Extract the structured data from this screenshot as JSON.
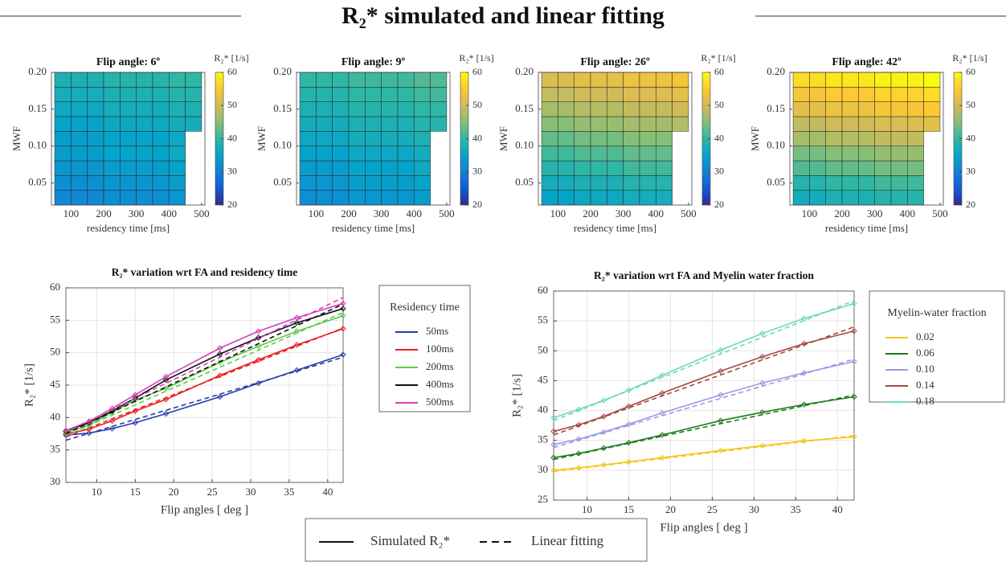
{
  "title": "R₂* simulated and linear fitting",
  "bottom_legend": {
    "labels": [
      "Simulated R₂*",
      "Linear fitting"
    ],
    "line_styles": [
      "solid",
      "dashed"
    ]
  },
  "chart_data": [
    {
      "type": "heatmap",
      "title": "Flip angle: 6º",
      "xlabel": "residency time [ms]",
      "ylabel": "MWF",
      "x": [
        75,
        125,
        175,
        225,
        275,
        325,
        375,
        425,
        475
      ],
      "y": [
        0.03,
        0.05,
        0.07,
        0.09,
        0.11,
        0.13,
        0.15,
        0.17,
        0.19
      ],
      "values": [
        [
          31,
          31,
          31,
          32,
          32,
          32,
          32,
          33,
          null
        ],
        [
          32,
          32,
          32,
          33,
          33,
          33,
          33,
          34,
          null
        ],
        [
          33,
          33,
          33,
          34,
          34,
          34,
          34,
          35,
          null
        ],
        [
          34,
          34,
          34,
          35,
          35,
          35,
          35,
          36,
          null
        ],
        [
          34,
          34,
          34,
          35,
          35,
          35,
          35,
          36,
          null
        ],
        [
          35,
          35,
          35,
          36,
          36,
          36,
          36,
          37,
          37
        ],
        [
          36,
          36,
          36,
          37,
          37,
          37,
          37,
          38,
          38
        ],
        [
          37,
          37,
          37,
          38,
          38,
          38,
          38,
          39,
          39
        ],
        [
          38,
          38,
          38,
          39,
          39,
          39,
          39,
          40,
          40
        ]
      ],
      "xlim": [
        40,
        510
      ],
      "ylim": [
        0.02,
        0.2
      ],
      "xticks": [
        100,
        200,
        300,
        400,
        500
      ],
      "yticks": [
        0.05,
        {
          "value": 0.1,
          "label": "0.10"
        },
        0.15,
        {
          "value": 0.2,
          "label": "0.20"
        }
      ],
      "colorbar": {
        "label": "R₂* [1/s]",
        "lim": [
          20,
          60
        ],
        "ticks": [
          20,
          30,
          40,
          50,
          60
        ]
      },
      "colormap": [
        "#352a87",
        "#0f5cdd",
        "#1481d6",
        "#06a4ca",
        "#2eb7a4",
        "#87bf77",
        "#d1bb59",
        "#fec832",
        "#f9fb0e"
      ]
    },
    {
      "type": "heatmap",
      "title": "Flip angle: 9º",
      "xlabel": "residency time [ms]",
      "ylabel": "MWF",
      "x": [
        75,
        125,
        175,
        225,
        275,
        325,
        375,
        425,
        475
      ],
      "y": [
        0.03,
        0.05,
        0.07,
        0.09,
        0.11,
        0.13,
        0.15,
        0.17,
        0.19
      ],
      "values": [
        [
          32,
          32,
          32,
          33,
          33,
          33,
          33,
          34,
          null
        ],
        [
          33,
          33,
          33,
          34,
          34,
          34,
          34,
          35,
          null
        ],
        [
          34,
          34,
          34,
          35,
          35,
          35,
          35,
          36,
          null
        ],
        [
          35,
          35,
          35,
          36,
          36,
          36,
          36,
          37,
          null
        ],
        [
          36,
          36,
          36,
          37,
          37,
          37,
          37,
          38,
          null
        ],
        [
          37,
          37,
          37,
          38,
          38,
          38,
          38,
          39,
          39
        ],
        [
          38,
          38,
          38,
          39,
          39,
          39,
          39,
          40,
          40
        ],
        [
          39,
          39,
          39,
          40,
          40,
          40,
          40,
          41,
          41
        ],
        [
          40,
          40,
          40,
          41,
          41,
          41,
          41,
          42,
          42
        ]
      ],
      "xlim": [
        40,
        510
      ],
      "ylim": [
        0.02,
        0.2
      ],
      "xticks": [
        100,
        200,
        300,
        400,
        500
      ],
      "yticks": [
        0.05,
        {
          "value": 0.1,
          "label": "0.10"
        },
        0.15,
        {
          "value": 0.2,
          "label": "0.20"
        }
      ],
      "colorbar": {
        "label": "R₂* [1/s]",
        "lim": [
          20,
          60
        ],
        "ticks": [
          20,
          30,
          40,
          50,
          60
        ]
      },
      "colormap": [
        "#352a87",
        "#0f5cdd",
        "#1481d6",
        "#06a4ca",
        "#2eb7a4",
        "#87bf77",
        "#d1bb59",
        "#fec832",
        "#f9fb0e"
      ]
    },
    {
      "type": "heatmap",
      "title": "Flip angle: 26º",
      "xlabel": "residency time [ms]",
      "ylabel": "MWF",
      "x": [
        75,
        125,
        175,
        225,
        275,
        325,
        375,
        425,
        475
      ],
      "y": [
        0.03,
        0.05,
        0.07,
        0.09,
        0.11,
        0.13,
        0.15,
        0.17,
        0.19
      ],
      "values": [
        [
          35,
          35,
          36,
          36,
          36,
          37,
          37,
          37,
          null
        ],
        [
          37,
          37,
          38,
          38,
          38,
          39,
          39,
          39,
          null
        ],
        [
          39,
          39,
          40,
          40,
          40,
          41,
          41,
          41,
          null
        ],
        [
          41,
          41,
          42,
          42,
          42,
          43,
          43,
          43,
          null
        ],
        [
          43,
          43,
          44,
          44,
          44,
          45,
          45,
          45,
          null
        ],
        [
          45,
          45,
          46,
          46,
          46,
          47,
          47,
          47,
          48
        ],
        [
          47,
          47,
          48,
          48,
          48,
          49,
          49,
          49,
          50
        ],
        [
          49,
          49,
          50,
          50,
          50,
          51,
          51,
          51,
          52
        ],
        [
          51,
          51,
          52,
          52,
          52,
          53,
          53,
          53,
          54
        ]
      ],
      "xlim": [
        40,
        510
      ],
      "ylim": [
        0.02,
        0.2
      ],
      "xticks": [
        100,
        200,
        300,
        400,
        500
      ],
      "yticks": [
        0.05,
        {
          "value": 0.1,
          "label": "0.10"
        },
        0.15,
        {
          "value": 0.2,
          "label": "0.20"
        }
      ],
      "colorbar": {
        "label": "R₂* [1/s]",
        "lim": [
          20,
          60
        ],
        "ticks": [
          20,
          30,
          40,
          50,
          60
        ]
      },
      "colormap": [
        "#352a87",
        "#0f5cdd",
        "#1481d6",
        "#06a4ca",
        "#2eb7a4",
        "#87bf77",
        "#d1bb59",
        "#fec832",
        "#f9fb0e"
      ]
    },
    {
      "type": "heatmap",
      "title": "Flip angle: 42º",
      "xlabel": "residency time [ms]",
      "ylabel": "MWF",
      "x": [
        75,
        125,
        175,
        225,
        275,
        325,
        375,
        425,
        475
      ],
      "y": [
        0.03,
        0.05,
        0.07,
        0.09,
        0.11,
        0.13,
        0.15,
        0.17,
        0.19
      ],
      "values": [
        [
          37,
          37,
          38,
          38,
          38,
          39,
          39,
          39,
          null
        ],
        [
          39,
          39,
          40,
          40,
          40,
          41,
          41,
          41,
          null
        ],
        [
          42,
          42,
          43,
          43,
          43,
          44,
          44,
          44,
          null
        ],
        [
          44,
          44,
          45,
          45,
          45,
          46,
          46,
          46,
          null
        ],
        [
          47,
          47,
          48,
          48,
          48,
          49,
          49,
          49,
          null
        ],
        [
          49,
          49,
          50,
          50,
          50,
          51,
          51,
          51,
          52
        ],
        [
          52,
          52,
          53,
          53,
          53,
          54,
          54,
          54,
          55
        ],
        [
          54,
          54,
          55,
          55,
          55,
          56,
          56,
          56,
          57
        ],
        [
          57,
          57,
          58,
          58,
          58,
          59,
          59,
          59,
          60
        ]
      ],
      "xlim": [
        40,
        510
      ],
      "ylim": [
        0.02,
        0.2
      ],
      "xticks": [
        100,
        200,
        300,
        400,
        500
      ],
      "yticks": [
        0.05,
        {
          "value": 0.1,
          "label": "0.10"
        },
        0.15,
        {
          "value": 0.2,
          "label": "0.20"
        }
      ],
      "colorbar": {
        "label": "R₂* [1/s]",
        "lim": [
          20,
          60
        ],
        "ticks": [
          20,
          30,
          40,
          50,
          60
        ]
      },
      "colormap": [
        "#352a87",
        "#0f5cdd",
        "#1481d6",
        "#06a4ca",
        "#2eb7a4",
        "#87bf77",
        "#d1bb59",
        "#fec832",
        "#f9fb0e"
      ]
    },
    {
      "type": "line",
      "title": "R₂* variation wrt FA and residency time",
      "xlabel": "Flip angles [ deg ]",
      "ylabel": "R₂* [1/s]",
      "x": [
        6,
        9,
        12,
        15,
        19,
        26,
        31,
        36,
        42
      ],
      "fit_x": [
        6,
        42
      ],
      "xlim": [
        6,
        42
      ],
      "ylim": [
        30,
        60
      ],
      "xticks": [
        10,
        15,
        20,
        25,
        30,
        35,
        40
      ],
      "yticks": [
        30,
        35,
        40,
        45,
        50,
        55,
        60
      ],
      "grid": true,
      "legend_title": "Residency time",
      "series": [
        {
          "name": "50ms",
          "color": "#2b3aa8",
          "values": [
            37.3,
            37.6,
            38.3,
            39.2,
            40.6,
            43.2,
            45.3,
            47.3,
            49.7
          ],
          "fit": [
            36.5,
            49.3
          ]
        },
        {
          "name": "100ms",
          "color": "#e8201f",
          "values": [
            37.5,
            38.2,
            39.5,
            41.0,
            42.8,
            46.5,
            48.9,
            51.2,
            53.7
          ],
          "fit": [
            37.0,
            53.8
          ]
        },
        {
          "name": "200ms",
          "color": "#5ccb45",
          "values": [
            37.7,
            38.8,
            40.8,
            42.7,
            44.5,
            48.5,
            51.0,
            53.3,
            55.7
          ],
          "fit": [
            37.2,
            56.2
          ]
        },
        {
          "name": "400ms",
          "color": "#111111",
          "values": [
            37.9,
            39.2,
            41.0,
            43.0,
            45.8,
            49.8,
            52.3,
            54.6,
            56.8
          ],
          "fit": [
            37.5,
            57.5
          ]
        },
        {
          "name": "500ms",
          "color": "#d63fb8",
          "values": [
            38.0,
            39.4,
            41.4,
            43.5,
            46.3,
            50.7,
            53.3,
            55.4,
            57.6
          ],
          "fit": [
            37.8,
            58.5
          ]
        }
      ]
    },
    {
      "type": "line",
      "title": "R₂* variation wrt FA and Myelin water fraction",
      "xlabel": "Flip angles [ deg ]",
      "ylabel": "R₂* [1/s]",
      "x": [
        6,
        9,
        12,
        15,
        19,
        26,
        31,
        36,
        42
      ],
      "fit_x": [
        6,
        42
      ],
      "xlim": [
        6,
        42
      ],
      "ylim": [
        25,
        60
      ],
      "xticks": [
        10,
        15,
        20,
        25,
        30,
        35,
        40
      ],
      "yticks": [
        25,
        30,
        35,
        40,
        45,
        50,
        55,
        60
      ],
      "grid": true,
      "legend_title": "Myelin-water fraction",
      "series": [
        {
          "name": "0.02",
          "color": "#f5c518",
          "values": [
            30.0,
            30.4,
            30.9,
            31.4,
            32.1,
            33.3,
            34.1,
            34.9,
            35.6
          ],
          "fit": [
            29.8,
            35.8
          ]
        },
        {
          "name": "0.06",
          "color": "#1a7a1a",
          "values": [
            32.1,
            32.8,
            33.7,
            34.6,
            35.9,
            38.3,
            39.7,
            41.0,
            42.3
          ],
          "fit": [
            31.8,
            42.6
          ]
        },
        {
          "name": "0.10",
          "color": "#9a9ae0",
          "values": [
            34.3,
            35.2,
            36.4,
            37.7,
            39.6,
            42.6,
            44.6,
            46.3,
            48.2
          ],
          "fit": [
            33.8,
            48.6
          ]
        },
        {
          "name": "0.14",
          "color": "#a34a44",
          "values": [
            36.5,
            37.6,
            39.0,
            40.7,
            42.9,
            46.6,
            49.0,
            51.2,
            53.3
          ],
          "fit": [
            35.9,
            54.0
          ]
        },
        {
          "name": "0.18",
          "color": "#6fd9b8",
          "values": [
            38.8,
            40.2,
            41.7,
            43.4,
            45.9,
            50.1,
            52.9,
            55.4,
            57.9
          ],
          "fit": [
            38.3,
            58.4
          ]
        }
      ]
    }
  ]
}
